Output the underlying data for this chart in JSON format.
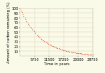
{
  "title": "",
  "xlabel": "Time in years",
  "ylabel": "Amount of carbon remaining (%)",
  "xlim": [
    0,
    28750
  ],
  "ylim": [
    0,
    100
  ],
  "xticks": [
    5750,
    11500,
    17250,
    23000,
    28750
  ],
  "yticks": [
    10,
    20,
    30,
    40,
    50,
    60,
    70,
    80,
    90,
    100
  ],
  "half_life": 5730,
  "curve_color": "#E8735A",
  "marker_color": "#E8735A",
  "bg_color": "#FAFAE8",
  "grid_color": "#D8C8B0",
  "x_max": 28750,
  "n_points": 80,
  "tick_fontsize": 3.5,
  "label_fontsize": 3.8
}
